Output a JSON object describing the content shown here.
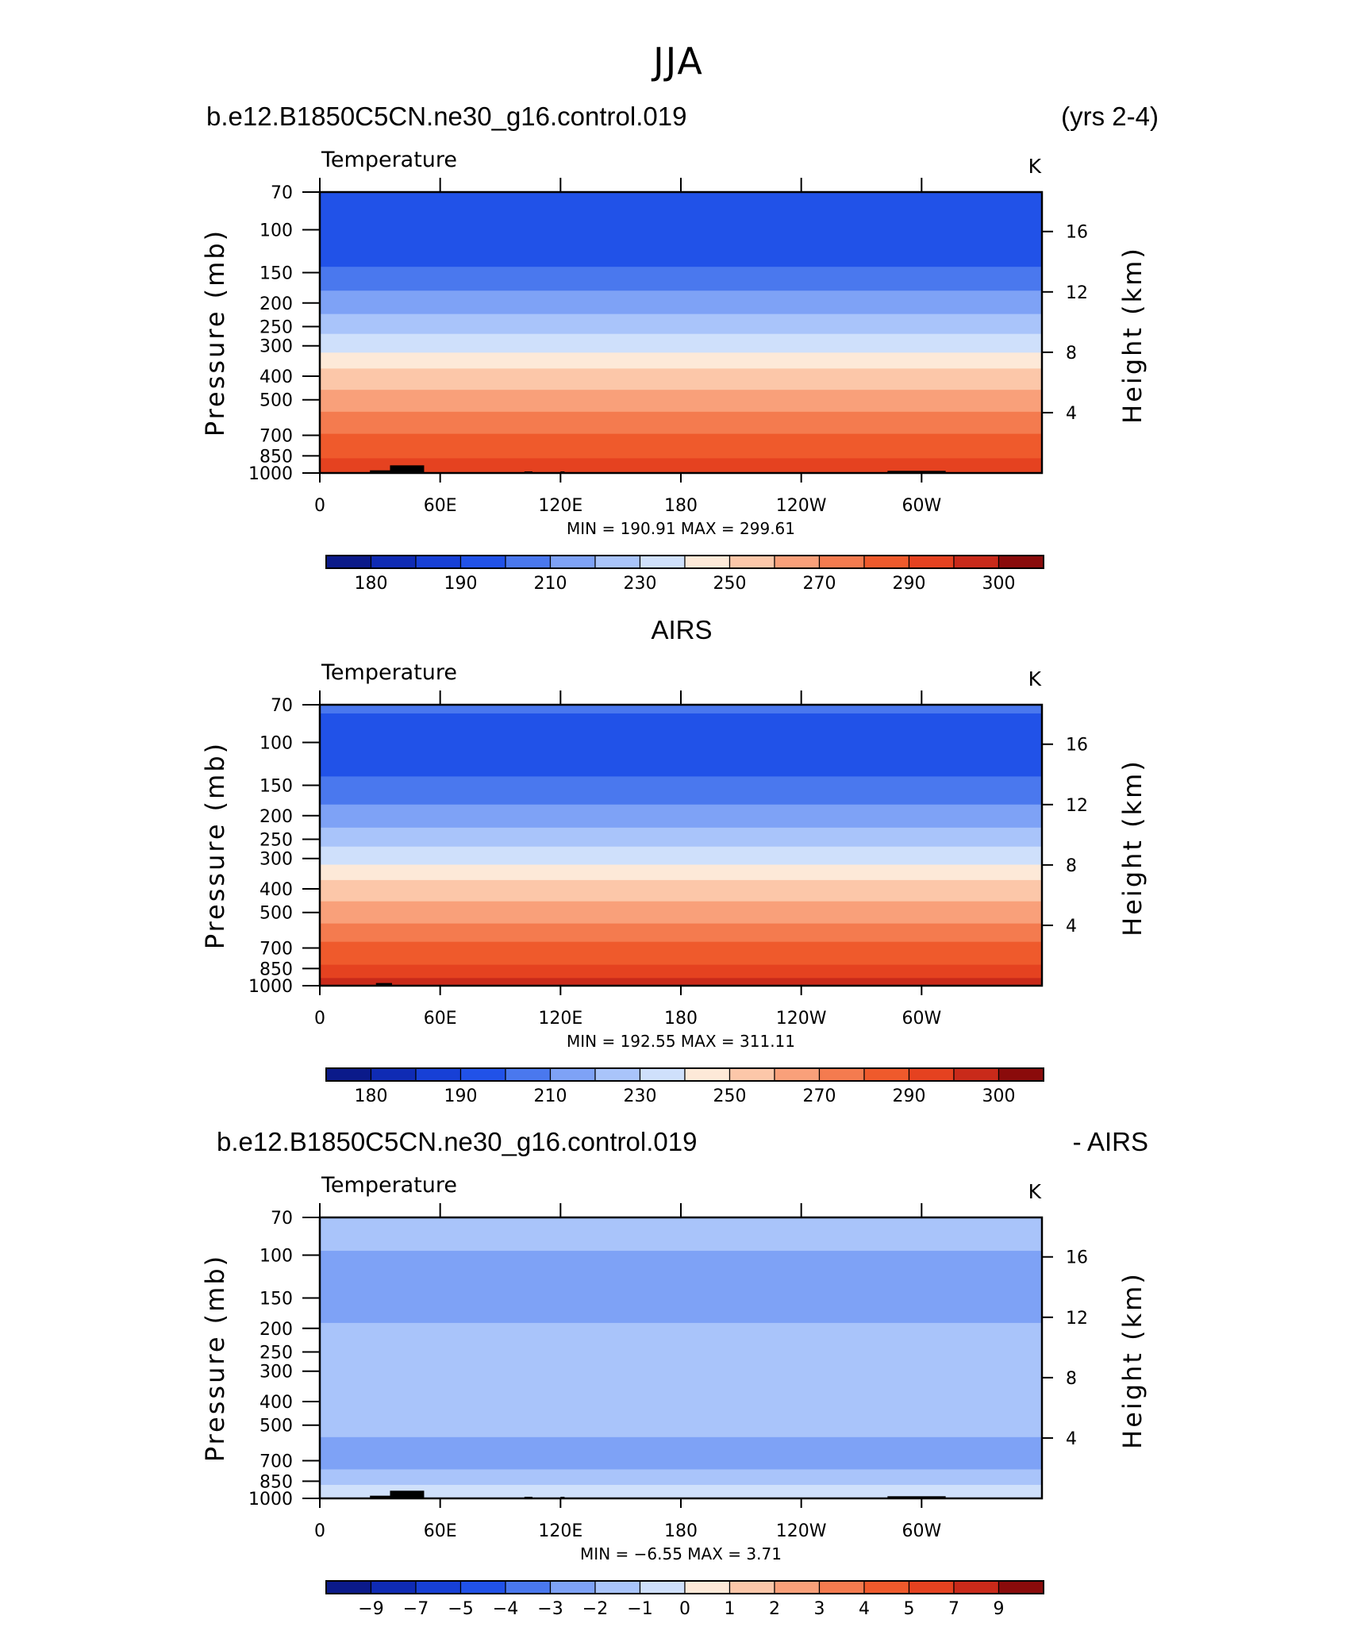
{
  "page": {
    "main_title": "JJA",
    "panel1_left_title": "b.e12.B1850C5CN.ne30_g16.control.019",
    "panel1_right_title": "(yrs 2-4)",
    "panel2_center_title": "AIRS",
    "panel3_left_title": "b.e12.B1850C5CN.ne30_g16.control.019",
    "panel3_right_title": "- AIRS"
  },
  "chart_data": [
    {
      "type": "heatmap",
      "variable_label": "Temperature",
      "units_label": "K",
      "ylabel": "Pressure (mb)",
      "ylabel_right": "Height (km)",
      "x_ticks": [
        "0",
        "60E",
        "120E",
        "180",
        "120W",
        "60W"
      ],
      "x_tick_lon": [
        0,
        60,
        120,
        180,
        240,
        300
      ],
      "xlim": [
        0,
        360
      ],
      "y_ticks": [
        "70",
        "100",
        "150",
        "200",
        "250",
        "300",
        "400",
        "500",
        "700",
        "850",
        "1000"
      ],
      "y_tick_p": [
        70,
        100,
        150,
        200,
        250,
        300,
        400,
        500,
        700,
        850,
        1000
      ],
      "ylim": [
        70,
        1000
      ],
      "y_scale": "log",
      "right_ticks": [
        "16",
        "12",
        "8",
        "4"
      ],
      "right_tick_km": [
        16,
        12,
        8,
        4
      ],
      "stats_label": "MIN = 190.91 MAX = 299.61",
      "colorbar_labels": [
        "180",
        "190",
        "210",
        "230",
        "250",
        "270",
        "290",
        "300"
      ],
      "bands": [
        {
          "p": 70,
          "color": "#2152e8"
        },
        {
          "p": 142,
          "color": "#4a78ee"
        },
        {
          "p": 178,
          "color": "#7ea2f6"
        },
        {
          "p": 222,
          "color": "#a9c4fa"
        },
        {
          "p": 268,
          "color": "#cfe0fb"
        },
        {
          "p": 320,
          "color": "#fde9d8"
        },
        {
          "p": 372,
          "color": "#fcc7a9"
        },
        {
          "p": 455,
          "color": "#f9a07a"
        },
        {
          "p": 560,
          "color": "#f47b4f"
        },
        {
          "p": 690,
          "color": "#ef5a2c"
        },
        {
          "p": 870,
          "color": "#e54220"
        }
      ]
    },
    {
      "type": "heatmap",
      "variable_label": "Temperature",
      "units_label": "K",
      "ylabel": "Pressure (mb)",
      "ylabel_right": "Height (km)",
      "x_ticks": [
        "0",
        "60E",
        "120E",
        "180",
        "120W",
        "60W"
      ],
      "x_tick_lon": [
        0,
        60,
        120,
        180,
        240,
        300
      ],
      "xlim": [
        0,
        360
      ],
      "y_ticks": [
        "70",
        "100",
        "150",
        "200",
        "250",
        "300",
        "400",
        "500",
        "700",
        "850",
        "1000"
      ],
      "y_tick_p": [
        70,
        100,
        150,
        200,
        250,
        300,
        400,
        500,
        700,
        850,
        1000
      ],
      "ylim": [
        70,
        1000
      ],
      "y_scale": "log",
      "right_ticks": [
        "16",
        "12",
        "8",
        "4"
      ],
      "right_tick_km": [
        16,
        12,
        8,
        4
      ],
      "stats_label": "MIN = 192.55 MAX = 311.11",
      "colorbar_labels": [
        "180",
        "190",
        "210",
        "230",
        "250",
        "270",
        "290",
        "300"
      ],
      "bands": [
        {
          "p": 70,
          "color": "#4a78ee"
        },
        {
          "p": 76,
          "color": "#2152e8"
        },
        {
          "p": 138,
          "color": "#4a78ee"
        },
        {
          "p": 180,
          "color": "#7ea2f6"
        },
        {
          "p": 224,
          "color": "#a9c4fa"
        },
        {
          "p": 268,
          "color": "#cfe0fb"
        },
        {
          "p": 318,
          "color": "#fde9d8"
        },
        {
          "p": 368,
          "color": "#fcc7a9"
        },
        {
          "p": 450,
          "color": "#f9a07a"
        },
        {
          "p": 555,
          "color": "#f47b4f"
        },
        {
          "p": 660,
          "color": "#ef5a2c"
        },
        {
          "p": 820,
          "color": "#e54220"
        },
        {
          "p": 930,
          "color": "#c92a1a"
        }
      ]
    },
    {
      "type": "heatmap",
      "variable_label": "Temperature",
      "units_label": "K",
      "ylabel": "Pressure (mb)",
      "ylabel_right": "Height (km)",
      "x_ticks": [
        "0",
        "60E",
        "120E",
        "180",
        "120W",
        "60W"
      ],
      "x_tick_lon": [
        0,
        60,
        120,
        180,
        240,
        300
      ],
      "xlim": [
        0,
        360
      ],
      "y_ticks": [
        "70",
        "100",
        "150",
        "200",
        "250",
        "300",
        "400",
        "500",
        "700",
        "850",
        "1000"
      ],
      "y_tick_p": [
        70,
        100,
        150,
        200,
        250,
        300,
        400,
        500,
        700,
        850,
        1000
      ],
      "ylim": [
        70,
        1000
      ],
      "y_scale": "log",
      "right_ticks": [
        "16",
        "12",
        "8",
        "4"
      ],
      "right_tick_km": [
        16,
        12,
        8,
        4
      ],
      "stats_label": "MIN = −6.55 MAX = 3.71",
      "colorbar_labels": [
        "−9",
        "−7",
        "−5",
        "−4",
        "−3",
        "−2",
        "−1",
        "0",
        "1",
        "2",
        "3",
        "4",
        "5",
        "7",
        "9"
      ],
      "bands": [
        {
          "p": 70,
          "color": "#a9c4fa"
        },
        {
          "p": 96,
          "color": "#7ea2f6"
        },
        {
          "p": 190,
          "color": "#a9c4fa"
        },
        {
          "p": 560,
          "color": "#7ea2f6"
        },
        {
          "p": 760,
          "color": "#a9c4fa"
        },
        {
          "p": 880,
          "color": "#cfe0fb"
        }
      ]
    }
  ],
  "colors": {
    "colorbar_16": [
      "#0b1a8a",
      "#0f2bb4",
      "#1740d6",
      "#2152e8",
      "#4a78ee",
      "#7ea2f6",
      "#a9c4fa",
      "#cfe0fb",
      "#fde9d8",
      "#fcc7a9",
      "#f9a07a",
      "#f47b4f",
      "#ef5a2c",
      "#e54220",
      "#c92a1a",
      "#8a0b0b"
    ],
    "topography": "#000000"
  }
}
